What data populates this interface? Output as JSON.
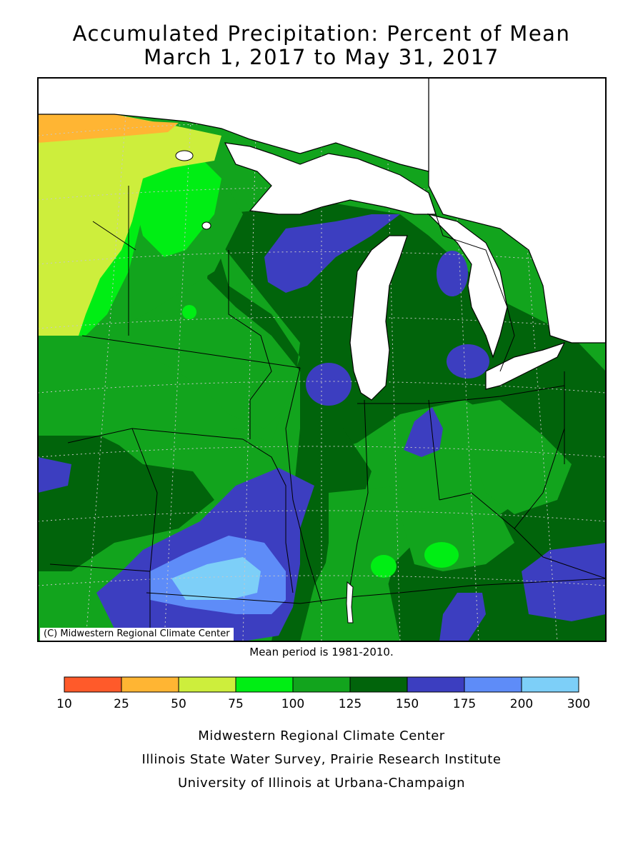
{
  "title": {
    "line1": "Accumulated Precipitation: Percent of Mean",
    "line2": "March 1, 2017 to May 31, 2017"
  },
  "map": {
    "copyright": "(C) Midwestern Regional Climate Center",
    "lake_color": "#ffffff",
    "graticule": "dotted"
  },
  "mean_period_note": "Mean period is 1981-2010.",
  "legend": {
    "breaks": [
      "10",
      "25",
      "50",
      "75",
      "100",
      "125",
      "150",
      "175",
      "200",
      "300"
    ],
    "colors": [
      "#ff5a2a",
      "#ffb533",
      "#cdee3c",
      "#00ee14",
      "#12a41d",
      "#01640b",
      "#3c3ec0",
      "#5e8cf8",
      "#7dcff8"
    ]
  },
  "credits": [
    "Midwestern Regional Climate Center",
    "Illinois State Water Survey, Prairie Research Institute",
    "University of Illinois at Urbana-Champaign"
  ]
}
